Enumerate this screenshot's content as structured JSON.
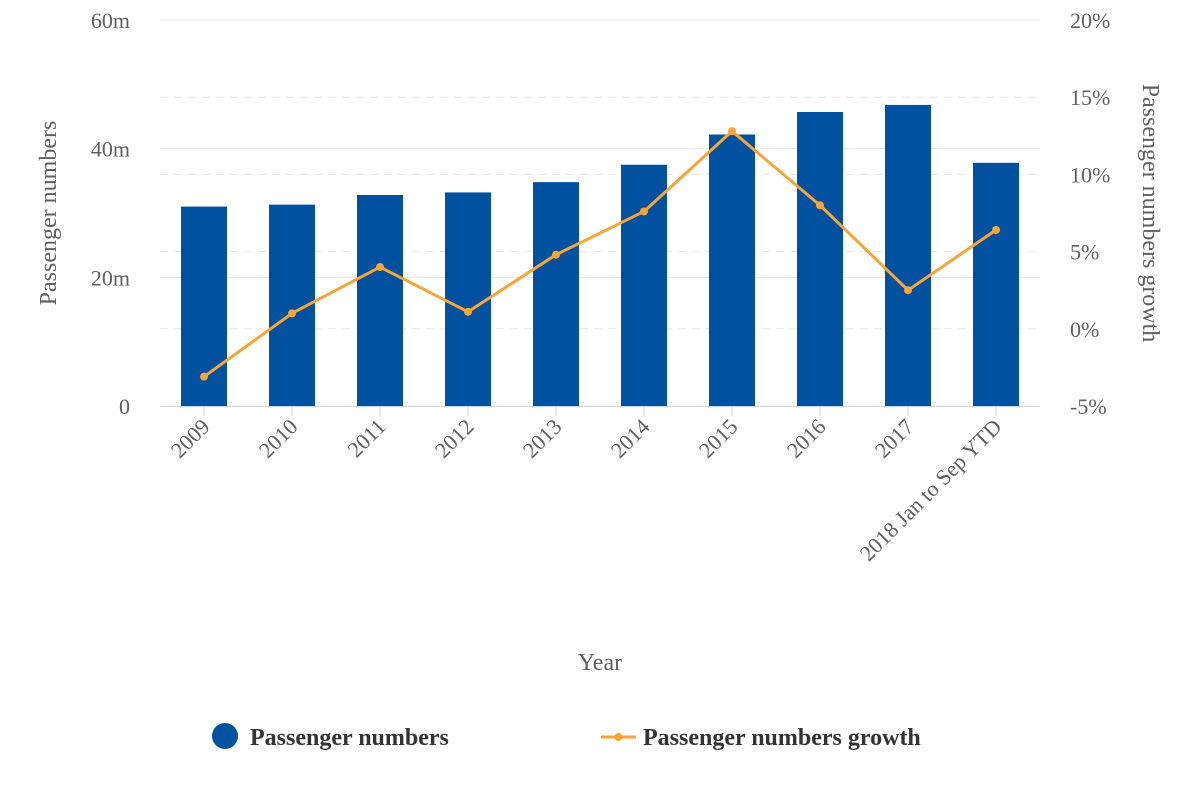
{
  "chart_data": {
    "type": "bar",
    "categories": [
      "2009",
      "2010",
      "2011",
      "2012",
      "2013",
      "2014",
      "2015",
      "2016",
      "2017",
      "2018 Jan to Sep YTD"
    ],
    "series": [
      {
        "name": "Passenger numbers",
        "type": "bar",
        "axis": "left",
        "color": "#0052a1",
        "values": [
          31,
          31.3,
          32.8,
          33.2,
          34.8,
          37.5,
          42.2,
          45.7,
          46.8,
          37.8
        ]
      },
      {
        "name": "Passenger numbers growth",
        "type": "line",
        "axis": "right",
        "color": "#f7a535",
        "values": [
          -3.1,
          1.0,
          4.0,
          1.1,
          4.8,
          7.6,
          12.8,
          8.0,
          2.5,
          6.4
        ]
      }
    ],
    "xlabel": "Year",
    "ylabel": "Passenger numbers",
    "y2label": "Passenger numbers growth",
    "ylim": [
      0,
      60
    ],
    "y2lim": [
      -5,
      20
    ],
    "yticks": [
      "0",
      "20m",
      "40m",
      "60m"
    ],
    "y2ticks": [
      "-5%",
      "0%",
      "5%",
      "10%",
      "15%",
      "20%"
    ],
    "grid": true,
    "legend": "bottom-center"
  }
}
